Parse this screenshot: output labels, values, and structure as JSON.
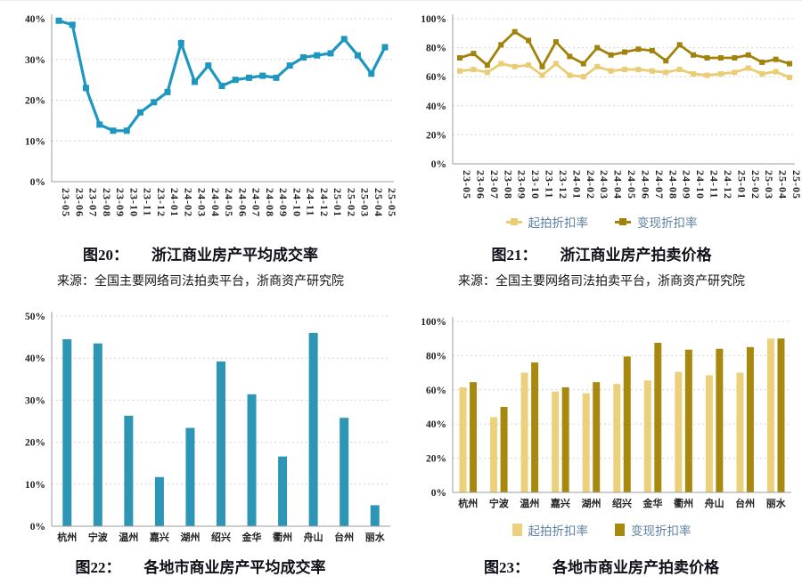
{
  "chart_data": [
    {
      "id": "fig20",
      "type": "line",
      "caption_no": "图20：",
      "caption_title": "浙江商业房产平均成交率",
      "source": "来源：全国主要网络司法拍卖平台，浙商资产研究院",
      "x": [
        "23-05",
        "23-06",
        "23-07",
        "23-08",
        "23-09",
        "23-10",
        "23-11",
        "23-12",
        "24-01",
        "24-02",
        "24-03",
        "24-04",
        "24-05",
        "24-06",
        "24-07",
        "24-08",
        "24-09",
        "24-10",
        "24-11",
        "24-12",
        "25-01",
        "25-02",
        "25-03",
        "25-04",
        "25-05"
      ],
      "ylim": [
        0,
        40
      ],
      "ytick_step": 10,
      "yticks": [
        "0%",
        "10%",
        "20%",
        "30%",
        "40%"
      ],
      "grid": "dashed-horizontal",
      "legend_position": "none",
      "series": [
        {
          "color": "#1d97bf",
          "values": [
            39.5,
            38.5,
            23,
            14,
            12.5,
            12.5,
            17,
            19.5,
            22,
            34,
            24.5,
            28.5,
            23.5,
            25,
            25.5,
            26,
            25.5,
            28.5,
            30.5,
            31,
            31.5,
            35,
            31,
            26.5,
            33
          ]
        }
      ]
    },
    {
      "id": "fig21",
      "type": "line",
      "caption_no": "图21：",
      "caption_title": "浙江商业房产拍卖价格",
      "source": "来源：全国主要网络司法拍卖平台，浙商资产研究院",
      "x": [
        "23-05",
        "23-06",
        "23-07",
        "23-08",
        "23-09",
        "23-10",
        "23-11",
        "23-12",
        "24-01",
        "24-02",
        "24-03",
        "24-04",
        "24-05",
        "24-06",
        "24-07",
        "24-08",
        "24-09",
        "24-10",
        "24-11",
        "24-12",
        "25-01",
        "25-02",
        "25-03",
        "25-04",
        "25-05"
      ],
      "ylim": [
        0,
        100
      ],
      "ytick_step": 20,
      "yticks": [
        "0%",
        "20%",
        "40%",
        "60%",
        "80%",
        "100%"
      ],
      "grid": "dashed-horizontal",
      "legend_position": "bottom",
      "series": [
        {
          "name": "起拍折扣率",
          "color": "#e9cc74",
          "values": [
            64,
            65,
            63,
            69,
            67,
            68,
            61,
            69,
            61,
            60,
            67,
            64,
            65,
            65,
            64,
            63,
            65,
            62,
            61,
            62,
            63,
            66,
            62,
            63.5,
            59.5
          ]
        },
        {
          "name": "变现折扣率",
          "color": "#a1830c",
          "values": [
            73,
            76,
            68,
            82,
            91,
            85,
            67,
            84,
            74,
            69,
            80,
            75,
            77,
            79,
            78,
            71,
            82,
            75,
            73,
            73,
            73,
            75,
            70,
            72,
            69
          ]
        }
      ]
    },
    {
      "id": "fig22",
      "type": "bar",
      "caption_no": "图22：",
      "caption_title": "各地市商业房产平均成交率",
      "categories": [
        "杭州",
        "宁波",
        "温州",
        "嘉兴",
        "湖州",
        "绍兴",
        "金华",
        "衢州",
        "舟山",
        "台州",
        "丽水"
      ],
      "ylim": [
        0,
        50
      ],
      "ytick_step": 10,
      "yticks": [
        "0%",
        "10%",
        "20%",
        "30%",
        "40%",
        "50%"
      ],
      "grid": "dashed-horizontal",
      "legend_position": "none",
      "series": [
        {
          "color": "#2d96b5",
          "values": [
            44.5,
            43.5,
            26.3,
            11.7,
            23.4,
            39.2,
            31.4,
            16.6,
            46,
            25.8,
            5
          ]
        }
      ]
    },
    {
      "id": "fig23",
      "type": "bar",
      "caption_no": "图23：",
      "caption_title": "各地市商业房产拍卖价格",
      "categories": [
        "杭州",
        "宁波",
        "温州",
        "嘉兴",
        "湖州",
        "绍兴",
        "金华",
        "衢州",
        "舟山",
        "台州",
        "丽水"
      ],
      "ylim": [
        0,
        100
      ],
      "ytick_step": 20,
      "yticks": [
        "0%",
        "20%",
        "40%",
        "60%",
        "80%",
        "100%"
      ],
      "grid": "dashed-horizontal",
      "legend_position": "bottom",
      "series": [
        {
          "name": "起拍折扣率",
          "color": "#ecd07b",
          "values": [
            61.5,
            44,
            70,
            59,
            58,
            63.5,
            65.5,
            70.5,
            68.5,
            70,
            90
          ]
        },
        {
          "name": "变现折扣率",
          "color": "#a8890f",
          "values": [
            64.5,
            50,
            76,
            61.5,
            64.5,
            79.5,
            87.5,
            83.5,
            84,
            85,
            90
          ]
        }
      ]
    }
  ]
}
